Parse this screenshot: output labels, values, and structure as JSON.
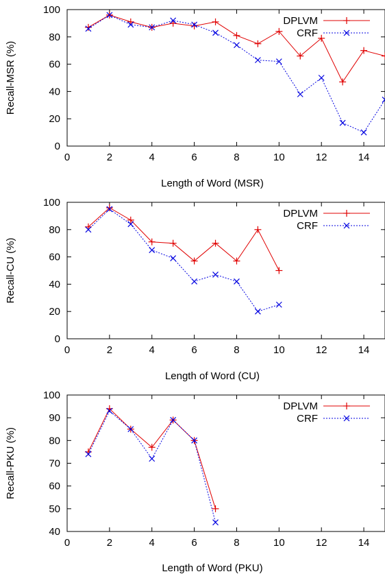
{
  "chart_data": [
    {
      "type": "line",
      "xlabel": "Length of Word (MSR)",
      "ylabel": "Recall-MSR (%)",
      "xlim": [
        0,
        15
      ],
      "ylim": [
        0,
        100
      ],
      "xticks": [
        0,
        2,
        4,
        6,
        8,
        10,
        12,
        14
      ],
      "yticks": [
        0,
        20,
        40,
        60,
        80,
        100
      ],
      "grid": false,
      "legend_position": "top-right",
      "series": [
        {
          "name": "DPLVM",
          "color": "#e00000",
          "line_style": "solid",
          "marker": "plus",
          "x": [
            1,
            2,
            3,
            4,
            5,
            6,
            7,
            8,
            9,
            10,
            11,
            12,
            13,
            14,
            15
          ],
          "y": [
            87,
            96,
            91,
            87,
            90,
            88,
            91,
            81,
            75,
            84,
            66,
            79,
            47,
            70,
            66
          ]
        },
        {
          "name": "CRF",
          "color": "#0000e0",
          "line_style": "dotted",
          "marker": "cross",
          "x": [
            1,
            2,
            3,
            4,
            5,
            6,
            7,
            8,
            9,
            10,
            11,
            12,
            13,
            14,
            15
          ],
          "y": [
            86,
            96,
            89,
            87,
            92,
            89,
            83,
            74,
            63,
            62,
            38,
            50,
            17,
            10,
            34
          ]
        }
      ]
    },
    {
      "type": "line",
      "xlabel": "Length of Word (CU)",
      "ylabel": "Recall-CU (%)",
      "xlim": [
        0,
        15
      ],
      "ylim": [
        0,
        100
      ],
      "xticks": [
        0,
        2,
        4,
        6,
        8,
        10,
        12,
        14
      ],
      "yticks": [
        0,
        20,
        40,
        60,
        80,
        100
      ],
      "grid": false,
      "legend_position": "top-right",
      "series": [
        {
          "name": "DPLVM",
          "color": "#e00000",
          "line_style": "solid",
          "marker": "plus",
          "x": [
            1,
            2,
            3,
            4,
            5,
            6,
            7,
            8,
            9,
            10
          ],
          "y": [
            82,
            96,
            87,
            71,
            70,
            57,
            70,
            57,
            80,
            50
          ]
        },
        {
          "name": "CRF",
          "color": "#0000e0",
          "line_style": "dotted",
          "marker": "cross",
          "x": [
            1,
            2,
            3,
            4,
            5,
            6,
            7,
            8,
            9,
            10
          ],
          "y": [
            80,
            95,
            84,
            65,
            59,
            42,
            47,
            42,
            20,
            25
          ]
        }
      ]
    },
    {
      "type": "line",
      "xlabel": "Length of Word (PKU)",
      "ylabel": "Recall-PKU (%)",
      "xlim": [
        0,
        15
      ],
      "ylim": [
        40,
        100
      ],
      "xticks": [
        0,
        2,
        4,
        6,
        8,
        10,
        12,
        14
      ],
      "yticks": [
        40,
        50,
        60,
        70,
        80,
        90,
        100
      ],
      "grid": false,
      "legend_position": "top-right",
      "series": [
        {
          "name": "DPLVM",
          "color": "#e00000",
          "line_style": "solid",
          "marker": "plus",
          "x": [
            1,
            2,
            3,
            4,
            5,
            6,
            7
          ],
          "y": [
            75,
            94,
            85,
            77,
            89,
            80,
            50
          ]
        },
        {
          "name": "CRF",
          "color": "#0000e0",
          "line_style": "dotted",
          "marker": "cross",
          "x": [
            1,
            2,
            3,
            4,
            5,
            6,
            7
          ],
          "y": [
            74,
            93,
            85,
            72,
            89,
            80,
            44
          ]
        }
      ]
    }
  ]
}
